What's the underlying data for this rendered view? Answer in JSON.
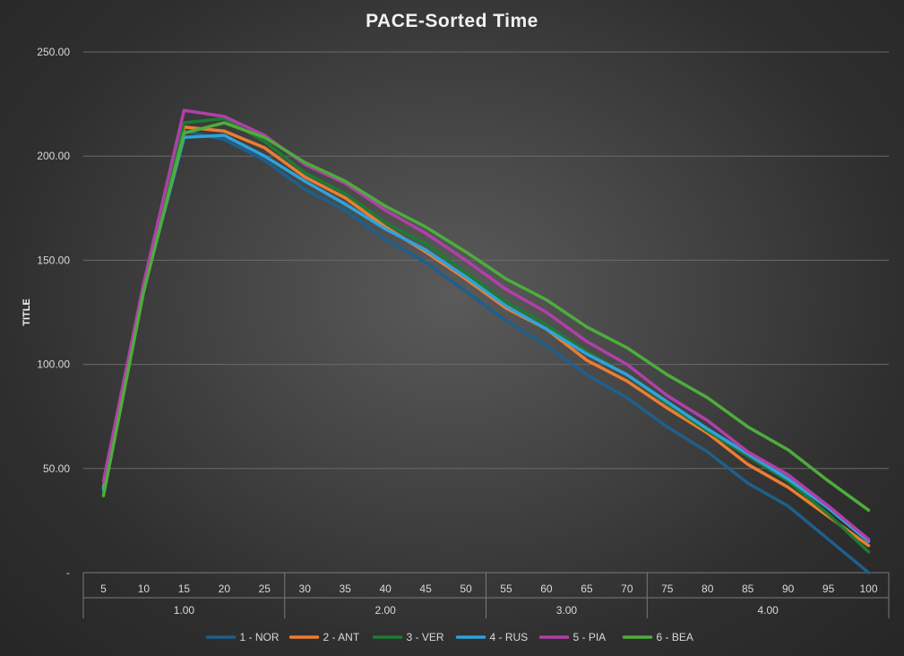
{
  "chart_data": {
    "type": "line",
    "title": "PACE-Sorted Time",
    "ylabel": "TITLE",
    "xlabel": "",
    "ylim": [
      0,
      250
    ],
    "yticks": [
      "-",
      "50.00",
      "100.00",
      "150.00",
      "200.00",
      "250.00"
    ],
    "x": [
      "5",
      "10",
      "15",
      "20",
      "25",
      "30",
      "35",
      "40",
      "45",
      "50",
      "55",
      "60",
      "65",
      "70",
      "75",
      "80",
      "85",
      "90",
      "95",
      "100"
    ],
    "groups": [
      {
        "label": "1.00",
        "count": 5
      },
      {
        "label": "2.00",
        "count": 5
      },
      {
        "label": "3.00",
        "count": 4
      },
      {
        "label": "4.00",
        "count": 6
      }
    ],
    "grid": true,
    "legend": "bottom",
    "series": [
      {
        "name": "1 - NOR",
        "color": "#1f5f8b",
        "values": [
          40,
          135,
          212,
          208,
          198,
          184,
          174,
          160,
          149,
          135,
          121,
          109,
          95,
          84,
          70,
          58,
          43,
          32,
          16,
          0
        ]
      },
      {
        "name": "2 - ANT",
        "color": "#ed7d31",
        "values": [
          41,
          137,
          214,
          212,
          204,
          190,
          180,
          166,
          154,
          141,
          127,
          117,
          102,
          92,
          79,
          67,
          52,
          41,
          27,
          13
        ]
      },
      {
        "name": "3 - VER",
        "color": "#1e7b34",
        "values": [
          39,
          136,
          216,
          218,
          207,
          192,
          182,
          168,
          158,
          144,
          130,
          119,
          106,
          95,
          81,
          68,
          56,
          44,
          28,
          10
        ]
      },
      {
        "name": "4 - RUS",
        "color": "#2ea3dc",
        "values": [
          40,
          136,
          209,
          210,
          200,
          188,
          177,
          165,
          155,
          142,
          128,
          117,
          105,
          95,
          82,
          69,
          57,
          45,
          31,
          15
        ]
      },
      {
        "name": "5 - PIA",
        "color": "#b040a8",
        "values": [
          44,
          139,
          222,
          219,
          210,
          196,
          187,
          174,
          163,
          150,
          136,
          125,
          111,
          100,
          85,
          73,
          58,
          47,
          32,
          16
        ]
      },
      {
        "name": "6 - BEA",
        "color": "#4eac3c",
        "values": [
          37,
          135,
          211,
          216,
          209,
          197,
          188,
          176,
          166,
          154,
          141,
          131,
          118,
          108,
          95,
          84,
          70,
          59,
          44,
          30
        ]
      }
    ]
  }
}
